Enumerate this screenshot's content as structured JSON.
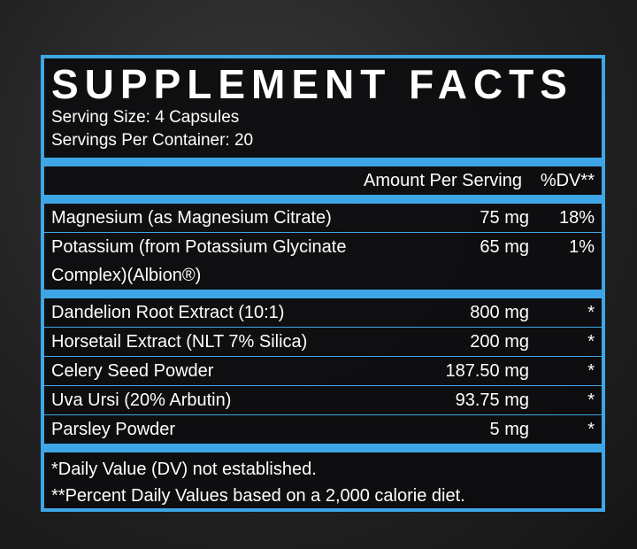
{
  "header": {
    "title": "SUPPLEMENT FACTS",
    "serving_size": "Serving Size: 4 Capsules",
    "servings_per_container": "Servings Per Container: 20"
  },
  "table": {
    "columns": [
      "Amount Per Serving",
      "%DV**"
    ],
    "groups": [
      [
        [
          "Magnesium (as Magnesium Citrate)",
          "75 mg",
          "18%"
        ],
        [
          "Potassium (from Potassium Glycinate Complex)(Albion®)",
          "65 mg",
          "1%"
        ]
      ],
      [
        [
          "Dandelion Root Extract (10:1)",
          "800 mg",
          "*"
        ],
        [
          "Horsetail Extract (NLT 7% Silica)",
          "200 mg",
          "*"
        ],
        [
          "Celery Seed Powder",
          "187.50 mg",
          "*"
        ],
        [
          "Uva Ursi (20% Arbutin)",
          "93.75 mg",
          "*"
        ],
        [
          "Parsley Powder",
          "5 mg",
          "*"
        ]
      ]
    ]
  },
  "footnotes": [
    "*Daily Value (DV) not established.",
    "**Percent Daily Values based on a 2,000 calorie diet."
  ]
}
